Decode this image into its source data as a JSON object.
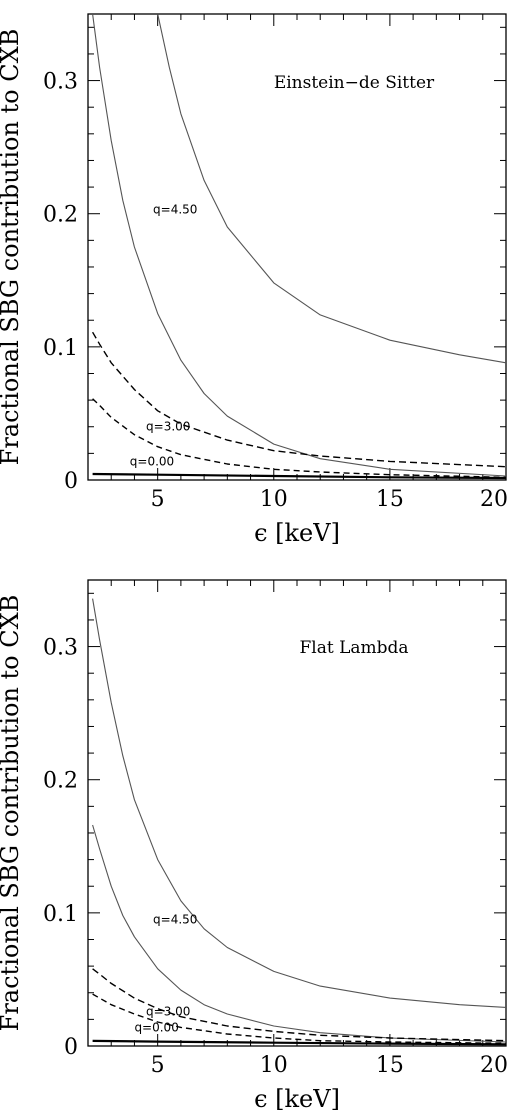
{
  "chart_data": [
    {
      "type": "line",
      "id": "top",
      "title": "",
      "annotation": "Einstein−de Sitter",
      "xlabel": "ϵ [keV]",
      "ylabel": "Fractional SBG contribution to CXB",
      "xlim": [
        2,
        20
      ],
      "ylim": [
        0,
        0.35
      ],
      "xticks": [
        5,
        10,
        15,
        20
      ],
      "yticks": [
        0,
        0.1,
        0.2,
        0.3
      ],
      "ytick_labels": [
        "0",
        "0.1",
        "0.2",
        "0.3"
      ],
      "grid": false,
      "curve_labels": [
        {
          "text": "q=4.50",
          "x": 4.8,
          "y": 0.2
        },
        {
          "text": "q=3.00",
          "x": 4.5,
          "y": 0.037
        },
        {
          "text": "q=0.00",
          "x": 3.8,
          "y": 0.011
        }
      ],
      "series": [
        {
          "style": "solid",
          "color": "#555555",
          "x": [
            5.0,
            5.5,
            6,
            7,
            8,
            10,
            12,
            15,
            18,
            20
          ],
          "y": [
            0.35,
            0.31,
            0.275,
            0.225,
            0.19,
            0.148,
            0.124,
            0.105,
            0.094,
            0.088
          ]
        },
        {
          "style": "solid",
          "color": "#555555",
          "x": [
            2.2,
            2.5,
            3,
            3.5,
            4,
            5,
            6,
            7,
            8,
            10,
            12,
            15,
            20
          ],
          "y": [
            0.35,
            0.31,
            0.255,
            0.21,
            0.175,
            0.125,
            0.09,
            0.065,
            0.048,
            0.027,
            0.016,
            0.008,
            0.003
          ]
        },
        {
          "style": "dashed",
          "color": "#000000",
          "x": [
            2.2,
            2.5,
            3,
            4,
            5,
            6,
            8,
            10,
            12,
            15,
            20
          ],
          "y": [
            0.111,
            0.102,
            0.088,
            0.068,
            0.052,
            0.042,
            0.03,
            0.022,
            0.018,
            0.014,
            0.01
          ]
        },
        {
          "style": "dashed",
          "color": "#000000",
          "x": [
            2.2,
            2.5,
            3,
            4,
            5,
            6,
            8,
            10,
            12,
            15,
            20
          ],
          "y": [
            0.061,
            0.056,
            0.047,
            0.034,
            0.025,
            0.019,
            0.012,
            0.008,
            0.006,
            0.004,
            0.002
          ]
        },
        {
          "style": "solid",
          "color": "#000000",
          "width": 2.2,
          "x": [
            2.2,
            5,
            10,
            15,
            20
          ],
          "y": [
            0.0045,
            0.004,
            0.003,
            0.002,
            0.0015
          ]
        }
      ]
    },
    {
      "type": "line",
      "id": "bottom",
      "title": "",
      "annotation": "Flat Lambda",
      "xlabel": "ϵ [keV]",
      "ylabel": "Fractional SBG contribution to CXB",
      "xlim": [
        2,
        20
      ],
      "ylim": [
        0,
        0.35
      ],
      "xticks": [
        5,
        10,
        15,
        20
      ],
      "yticks": [
        0,
        0.1,
        0.2,
        0.3
      ],
      "ytick_labels": [
        "0",
        "0.1",
        "0.2",
        "0.3"
      ],
      "grid": false,
      "curve_labels": [
        {
          "text": "q=4.50",
          "x": 4.8,
          "y": 0.092
        },
        {
          "text": "q=3.00",
          "x": 4.5,
          "y": 0.023
        },
        {
          "text": "q=0.00",
          "x": 4.0,
          "y": 0.011
        }
      ],
      "series": [
        {
          "style": "solid",
          "color": "#555555",
          "x": [
            2.2,
            2.5,
            3,
            3.5,
            4,
            5,
            6,
            7,
            8,
            10,
            12,
            15,
            18,
            20
          ],
          "y": [
            0.336,
            0.305,
            0.258,
            0.218,
            0.185,
            0.14,
            0.109,
            0.088,
            0.074,
            0.056,
            0.045,
            0.036,
            0.031,
            0.029
          ]
        },
        {
          "style": "solid",
          "color": "#555555",
          "x": [
            2.2,
            2.5,
            3,
            3.5,
            4,
            5,
            6,
            7,
            8,
            10,
            12,
            15,
            20
          ],
          "y": [
            0.166,
            0.148,
            0.12,
            0.098,
            0.082,
            0.058,
            0.042,
            0.031,
            0.024,
            0.015,
            0.01,
            0.006,
            0.003
          ]
        },
        {
          "style": "dashed",
          "color": "#000000",
          "x": [
            2.2,
            2.5,
            3,
            4,
            5,
            6,
            8,
            10,
            12,
            15,
            20
          ],
          "y": [
            0.058,
            0.054,
            0.047,
            0.036,
            0.028,
            0.022,
            0.015,
            0.011,
            0.008,
            0.006,
            0.004
          ]
        },
        {
          "style": "dashed",
          "color": "#000000",
          "x": [
            2.2,
            2.5,
            3,
            4,
            5,
            6,
            8,
            10,
            12,
            15,
            20
          ],
          "y": [
            0.039,
            0.036,
            0.031,
            0.024,
            0.018,
            0.014,
            0.009,
            0.006,
            0.004,
            0.003,
            0.002
          ]
        },
        {
          "style": "solid",
          "color": "#000000",
          "width": 2.2,
          "x": [
            2.2,
            5,
            10,
            15,
            20
          ],
          "y": [
            0.0038,
            0.0033,
            0.0025,
            0.0018,
            0.0013
          ]
        }
      ]
    }
  ]
}
